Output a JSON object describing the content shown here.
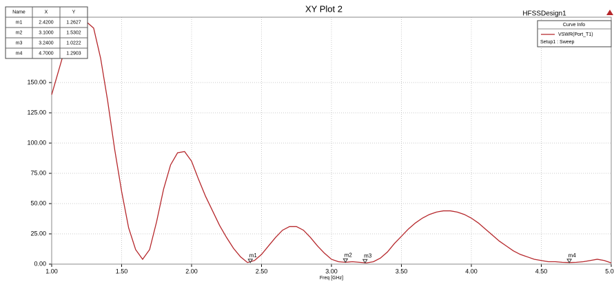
{
  "chart_data": {
    "type": "line",
    "title": "XY Plot 2",
    "design": "HFSSDesign1",
    "legend_title": "Curve Info",
    "legend_setup": "Setup1 : Sweep",
    "x_label": "Freq [GHz]",
    "xlim": [
      1.0,
      5.0
    ],
    "ylim": [
      0,
      204
    ],
    "xticks": [
      {
        "value": 1.0,
        "label": "1.00"
      },
      {
        "value": 1.5,
        "label": "1.50"
      },
      {
        "value": 2.0,
        "label": "2.00"
      },
      {
        "value": 2.5,
        "label": "2.50"
      },
      {
        "value": 3.0,
        "label": "3.00"
      },
      {
        "value": 3.5,
        "label": "3.50"
      },
      {
        "value": 4.0,
        "label": "4.00"
      },
      {
        "value": 4.5,
        "label": "4.50"
      },
      {
        "value": 5.0,
        "label": "5.00"
      }
    ],
    "yticks": [
      {
        "value": 0,
        "label": "0.00"
      },
      {
        "value": 25,
        "label": "25.00"
      },
      {
        "value": 50,
        "label": "50.00"
      },
      {
        "value": 75,
        "label": "75.00"
      },
      {
        "value": 100,
        "label": "100.00"
      },
      {
        "value": 125,
        "label": "125.00"
      },
      {
        "value": 150,
        "label": "150.00"
      }
    ],
    "grid": true,
    "x": [
      1.0,
      1.05,
      1.1,
      1.15,
      1.2,
      1.25,
      1.3,
      1.35,
      1.4,
      1.45,
      1.5,
      1.55,
      1.6,
      1.65,
      1.7,
      1.75,
      1.8,
      1.85,
      1.9,
      1.95,
      2.0,
      2.05,
      2.1,
      2.15,
      2.2,
      2.25,
      2.3,
      2.35,
      2.4,
      2.45,
      2.5,
      2.55,
      2.6,
      2.65,
      2.7,
      2.75,
      2.8,
      2.85,
      2.9,
      2.95,
      3.0,
      3.05,
      3.1,
      3.15,
      3.2,
      3.25,
      3.3,
      3.35,
      3.4,
      3.45,
      3.5,
      3.55,
      3.6,
      3.65,
      3.7,
      3.75,
      3.8,
      3.85,
      3.9,
      3.95,
      4.0,
      4.05,
      4.1,
      4.15,
      4.2,
      4.25,
      4.3,
      4.35,
      4.4,
      4.45,
      4.5,
      4.55,
      4.6,
      4.65,
      4.7,
      4.75,
      4.8,
      4.85,
      4.9,
      4.95,
      5.0
    ],
    "series": [
      {
        "name": "VSWR(Port_T1)",
        "color": "#b5262a",
        "values": [
          140,
          160,
          180,
          195,
          200,
          200,
          195,
          170,
          135,
          95,
          60,
          30,
          12,
          4,
          12,
          35,
          62,
          82,
          92,
          93,
          85,
          70,
          56,
          44,
          32,
          22,
          13,
          6,
          1.3,
          3,
          8,
          15,
          22,
          28,
          31,
          31,
          28,
          22,
          15,
          9,
          4,
          2,
          1.5,
          2,
          1.5,
          1,
          2,
          5,
          10,
          17,
          23,
          29,
          34,
          38,
          41,
          43,
          44,
          44,
          43,
          41,
          38,
          34,
          29,
          24,
          19,
          15,
          11,
          8,
          6,
          4,
          3,
          2,
          2,
          1.5,
          1.3,
          1.5,
          2,
          3,
          4,
          3,
          1
        ]
      }
    ],
    "marker_table_header": [
      "Name",
      "X",
      "Y"
    ],
    "markers": [
      {
        "name": "m1",
        "x": {
          "value": 2.42,
          "label": "2.4200"
        },
        "y": {
          "value": 1.2627,
          "label": "1.2627"
        }
      },
      {
        "name": "m2",
        "x": {
          "value": 3.1,
          "label": "3.1000"
        },
        "y": {
          "value": 1.5302,
          "label": "1.5302"
        }
      },
      {
        "name": "m3",
        "x": {
          "value": 3.24,
          "label": "3.2400"
        },
        "y": {
          "value": 1.0222,
          "label": "1.0222"
        }
      },
      {
        "name": "m4",
        "x": {
          "value": 4.7,
          "label": "4.7000"
        },
        "y": {
          "value": 1.2903,
          "label": "1.2903"
        }
      }
    ]
  }
}
